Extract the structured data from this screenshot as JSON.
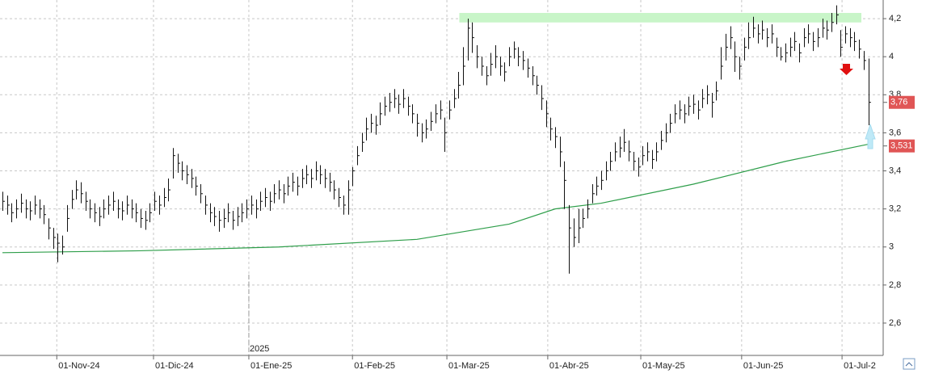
{
  "chart_data": {
    "type": "ohlc",
    "ylim": [
      2.43,
      4.298
    ],
    "yticks": [
      {
        "value": 2.6,
        "label": "2,6"
      },
      {
        "value": 2.8,
        "label": "2,8"
      },
      3,
      {
        "value": 3.2,
        "label": "3,2"
      },
      {
        "value": 3.4,
        "label": "3,4"
      },
      {
        "value": 3.6,
        "label": "3,6"
      },
      {
        "value": 3.8,
        "label": "3,8"
      },
      4,
      {
        "value": 4.2,
        "label": "4,2"
      }
    ],
    "xlim": [
      -0.53,
      191.23
    ],
    "xticks": [
      {
        "value": 11.8,
        "label": "01-Nov-24"
      },
      {
        "value": 32.8,
        "label": "01-Dic-24"
      },
      {
        "value": 53.5,
        "label": "01-Ene-25"
      },
      {
        "value": 76,
        "label": "01-Feb-25"
      },
      {
        "value": 96.5,
        "label": "01-Mar-25"
      },
      {
        "value": 118.4,
        "label": "01-Abr-25"
      },
      {
        "value": 138.6,
        "label": "01-May-25"
      },
      {
        "value": 160.5,
        "label": "01-Jun-25"
      },
      {
        "value": 182.3,
        "label": "01-Jul-2"
      }
    ],
    "year_marker": {
      "value": 53.5,
      "label": "2025"
    },
    "grid": true,
    "color": "#111111",
    "high": [
      3.29,
      3.27,
      3.23,
      3.25,
      3.28,
      3.25,
      3.24,
      3.27,
      3.25,
      3.22,
      3.15,
      3.1,
      3.07,
      3.06,
      3.22,
      3.3,
      3.35,
      3.34,
      3.29,
      3.25,
      3.23,
      3.21,
      3.25,
      3.27,
      3.29,
      3.25,
      3.24,
      3.27,
      3.25,
      3.23,
      3.2,
      3.19,
      3.23,
      3.29,
      3.27,
      3.31,
      3.36,
      3.52,
      3.49,
      3.45,
      3.43,
      3.41,
      3.37,
      3.33,
      3.27,
      3.23,
      3.21,
      3.19,
      3.2,
      3.23,
      3.19,
      3.21,
      3.23,
      3.25,
      3.27,
      3.25,
      3.29,
      3.31,
      3.29,
      3.33,
      3.35,
      3.33,
      3.37,
      3.39,
      3.37,
      3.41,
      3.43,
      3.41,
      3.45,
      3.43,
      3.41,
      3.39,
      3.35,
      3.31,
      3.27,
      3.35,
      3.42,
      3.53,
      3.6,
      3.68,
      3.7,
      3.69,
      3.76,
      3.79,
      3.81,
      3.83,
      3.8,
      3.83,
      3.79,
      3.75,
      3.7,
      3.65,
      3.67,
      3.71,
      3.75,
      3.77,
      3.68,
      3.77,
      3.83,
      3.92,
      4.05,
      4.2,
      4.18,
      4.06,
      4.0,
      3.95,
      4.02,
      4.06,
      4.0,
      3.97,
      4.05,
      4.08,
      4.05,
      4.03,
      3.99,
      3.95,
      3.9,
      3.85,
      3.77,
      3.68,
      3.63,
      3.58,
      3.45,
      3.22,
      3.15,
      3.2,
      3.2,
      3.25,
      3.33,
      3.37,
      3.4,
      3.45,
      3.5,
      3.55,
      3.58,
      3.62,
      3.56,
      3.5,
      3.47,
      3.53,
      3.55,
      3.51,
      3.55,
      3.61,
      3.65,
      3.7,
      3.75,
      3.77,
      3.75,
      3.79,
      3.8,
      3.77,
      3.83,
      3.85,
      3.81,
      3.87,
      4.05,
      4.12,
      4.16,
      4.08,
      4.0,
      4.1,
      4.18,
      4.21,
      4.17,
      4.19,
      4.15,
      4.17,
      4.1,
      4.05,
      4.07,
      4.1,
      4.13,
      4.07,
      4.15,
      4.17,
      4.13,
      4.15,
      4.2,
      4.19,
      4.23,
      4.27,
      4.14,
      4.16,
      4.15,
      4.13,
      4.09,
      4.03,
      3.99
    ],
    "low": [
      3.19,
      3.17,
      3.13,
      3.15,
      3.18,
      3.15,
      3.14,
      3.17,
      3.15,
      3.12,
      3.04,
      2.99,
      2.92,
      2.96,
      3.08,
      3.2,
      3.25,
      3.23,
      3.19,
      3.15,
      3.13,
      3.11,
      3.15,
      3.17,
      3.19,
      3.15,
      3.14,
      3.17,
      3.15,
      3.13,
      3.1,
      3.09,
      3.13,
      3.19,
      3.17,
      3.21,
      3.24,
      3.36,
      3.39,
      3.35,
      3.33,
      3.31,
      3.27,
      3.23,
      3.17,
      3.13,
      3.11,
      3.08,
      3.1,
      3.13,
      3.09,
      3.11,
      3.13,
      3.15,
      3.17,
      3.15,
      3.19,
      3.21,
      3.19,
      3.23,
      3.25,
      3.23,
      3.27,
      3.29,
      3.27,
      3.31,
      3.33,
      3.31,
      3.35,
      3.33,
      3.31,
      3.29,
      3.25,
      3.21,
      3.17,
      3.17,
      3.32,
      3.43,
      3.5,
      3.56,
      3.6,
      3.59,
      3.64,
      3.69,
      3.71,
      3.73,
      3.7,
      3.73,
      3.69,
      3.65,
      3.58,
      3.55,
      3.57,
      3.61,
      3.65,
      3.67,
      3.5,
      3.67,
      3.73,
      3.78,
      3.85,
      3.98,
      4.02,
      3.94,
      3.9,
      3.85,
      3.9,
      3.94,
      3.9,
      3.87,
      3.95,
      3.99,
      3.95,
      3.93,
      3.89,
      3.85,
      3.8,
      3.72,
      3.63,
      3.56,
      3.52,
      3.42,
      3.2,
      2.86,
      3.0,
      3.02,
      3.1,
      3.15,
      3.23,
      3.27,
      3.3,
      3.35,
      3.4,
      3.45,
      3.47,
      3.5,
      3.45,
      3.4,
      3.37,
      3.43,
      3.45,
      3.41,
      3.45,
      3.51,
      3.55,
      3.6,
      3.65,
      3.67,
      3.65,
      3.69,
      3.7,
      3.67,
      3.73,
      3.75,
      3.68,
      3.77,
      3.88,
      3.98,
      4.04,
      3.92,
      3.88,
      3.98,
      4.04,
      4.1,
      4.07,
      4.09,
      4.05,
      4.07,
      4.0,
      3.98,
      3.97,
      4.0,
      4.03,
      3.97,
      4.05,
      4.07,
      4.03,
      4.05,
      4.1,
      4.09,
      4.13,
      4.17,
      4.0,
      4.07,
      4.05,
      4.03,
      3.99,
      3.93,
      3.64
    ],
    "close": [
      3.24,
      3.22,
      3.18,
      3.2,
      3.23,
      3.2,
      3.19,
      3.22,
      3.2,
      3.17,
      3.1,
      3.05,
      3.02,
      3.0,
      3.15,
      3.25,
      3.3,
      3.28,
      3.24,
      3.2,
      3.18,
      3.16,
      3.2,
      3.22,
      3.24,
      3.2,
      3.19,
      3.22,
      3.2,
      3.18,
      3.15,
      3.14,
      3.18,
      3.24,
      3.22,
      3.26,
      3.3,
      3.48,
      3.44,
      3.4,
      3.38,
      3.36,
      3.32,
      3.28,
      3.22,
      3.18,
      3.16,
      3.14,
      3.15,
      3.18,
      3.14,
      3.16,
      3.18,
      3.2,
      3.22,
      3.2,
      3.24,
      3.26,
      3.24,
      3.28,
      3.3,
      3.28,
      3.32,
      3.34,
      3.32,
      3.36,
      3.38,
      3.36,
      3.4,
      3.38,
      3.36,
      3.34,
      3.3,
      3.26,
      3.22,
      3.3,
      3.4,
      3.48,
      3.55,
      3.62,
      3.65,
      3.64,
      3.7,
      3.74,
      3.76,
      3.78,
      3.75,
      3.78,
      3.74,
      3.7,
      3.65,
      3.6,
      3.62,
      3.66,
      3.7,
      3.72,
      3.6,
      3.72,
      3.78,
      3.85,
      3.95,
      4.15,
      4.1,
      4.0,
      3.95,
      3.9,
      3.96,
      4.0,
      3.95,
      3.92,
      4.0,
      4.04,
      4.0,
      3.98,
      3.94,
      3.9,
      3.85,
      3.78,
      3.7,
      3.62,
      3.58,
      3.5,
      3.35,
      3.1,
      3.05,
      3.1,
      3.15,
      3.2,
      3.28,
      3.32,
      3.35,
      3.4,
      3.45,
      3.5,
      3.52,
      3.55,
      3.5,
      3.45,
      3.42,
      3.48,
      3.5,
      3.46,
      3.5,
      3.56,
      3.6,
      3.65,
      3.7,
      3.72,
      3.7,
      3.74,
      3.75,
      3.72,
      3.78,
      3.8,
      3.76,
      3.82,
      3.95,
      4.05,
      4.1,
      4.0,
      3.95,
      4.05,
      4.1,
      4.15,
      4.12,
      4.14,
      4.1,
      4.12,
      4.05,
      4.0,
      4.02,
      4.05,
      4.08,
      4.02,
      4.1,
      4.12,
      4.08,
      4.1,
      4.15,
      4.14,
      4.18,
      4.22,
      4.05,
      4.12,
      4.1,
      4.08,
      4.04,
      3.98,
      3.76
    ],
    "moving_average": {
      "color": "#2e9e4a",
      "x": [
        0,
        30,
        60,
        90,
        110,
        120,
        130,
        150,
        170,
        188
      ],
      "values": [
        2.97,
        2.98,
        3.0,
        3.04,
        3.12,
        3.2,
        3.23,
        3.33,
        3.45,
        3.54
      ]
    },
    "resistance_band": {
      "color": "#c8f5c8",
      "x": [
        99.2,
        186.5
      ],
      "y": [
        4.18,
        4.23
      ]
    },
    "price_labels": [
      {
        "value": 3.76,
        "label": "3,76"
      },
      {
        "value": 3.531,
        "label": "3,531"
      }
    ]
  }
}
